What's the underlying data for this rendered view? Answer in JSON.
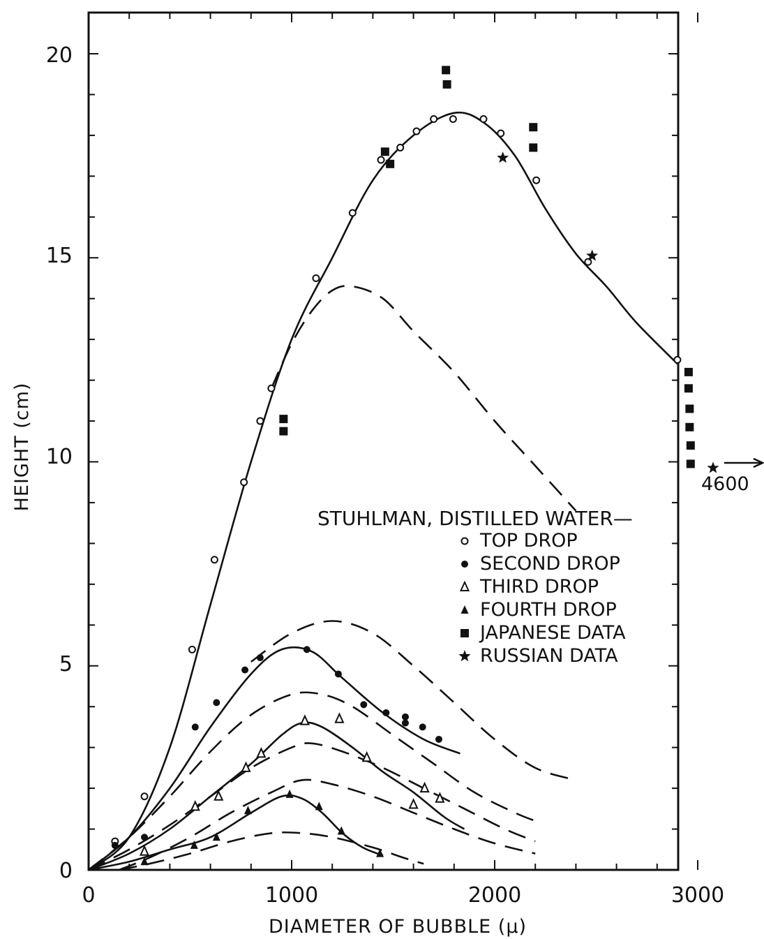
{
  "chart_data": {
    "type": "line",
    "title": "",
    "xlabel": "DIAMETER OF BUBBLE (μ)",
    "ylabel": "HEIGHT (cm)",
    "xlim": [
      0,
      3000
    ],
    "ylim": [
      0,
      20
    ],
    "xticks": [
      "0",
      "1000",
      "2000",
      "3000"
    ],
    "yticks": [
      "0",
      "5",
      "10",
      "15",
      "20"
    ],
    "legend": {
      "title": "STUHLMAN, DISTILLED WATER—",
      "placement": "right-center",
      "entries": [
        {
          "label": "TOP DROP",
          "marker": "open-circle"
        },
        {
          "label": "SECOND DROP",
          "marker": "filled-circle"
        },
        {
          "label": "THIRD DROP",
          "marker": "open-triangle"
        },
        {
          "label": "FOURTH DROP",
          "marker": "filled-triangle"
        },
        {
          "label": "JAPANESE DATA",
          "marker": "filled-square"
        },
        {
          "label": "RUSSIAN DATA",
          "marker": "star"
        }
      ]
    },
    "series": [
      {
        "name": "TOP DROP",
        "marker": "open-circle",
        "points": [
          [
            130,
            0.7
          ],
          [
            275,
            1.8
          ],
          [
            510,
            5.4
          ],
          [
            620,
            7.6
          ],
          [
            765,
            9.5
          ],
          [
            845,
            11
          ],
          [
            900,
            11.8
          ],
          [
            1120,
            14.5
          ],
          [
            1300,
            16.1
          ],
          [
            1440,
            17.4
          ],
          [
            1535,
            17.7
          ],
          [
            1615,
            18.1
          ],
          [
            1700,
            18.4
          ],
          [
            1795,
            18.4
          ],
          [
            1945,
            18.4
          ],
          [
            2030,
            18.05
          ],
          [
            2205,
            16.9
          ],
          [
            2460,
            14.9
          ],
          [
            2900,
            12.5
          ]
        ]
      },
      {
        "name": "SECOND DROP",
        "marker": "filled-circle",
        "points": [
          [
            130,
            0.6
          ],
          [
            275,
            0.8
          ],
          [
            525,
            3.5
          ],
          [
            630,
            4.1
          ],
          [
            770,
            4.9
          ],
          [
            845,
            5.2
          ],
          [
            1075,
            5.4
          ],
          [
            1230,
            4.8
          ],
          [
            1355,
            4.05
          ],
          [
            1465,
            3.85
          ],
          [
            1560,
            3.75
          ],
          [
            1560,
            3.6
          ],
          [
            1645,
            3.5
          ],
          [
            1725,
            3.2
          ]
        ]
      },
      {
        "name": "THIRD DROP",
        "marker": "open-triangle",
        "points": [
          [
            275,
            0.45
          ],
          [
            525,
            1.55
          ],
          [
            640,
            1.8
          ],
          [
            775,
            2.5
          ],
          [
            850,
            2.85
          ],
          [
            1065,
            3.65
          ],
          [
            1235,
            3.7
          ],
          [
            1370,
            2.75
          ],
          [
            1600,
            1.6
          ],
          [
            1655,
            2.0
          ],
          [
            1730,
            1.75
          ]
        ]
      },
      {
        "name": "FOURTH DROP",
        "marker": "filled-triangle",
        "points": [
          [
            275,
            0.2
          ],
          [
            520,
            0.6
          ],
          [
            630,
            0.8
          ],
          [
            785,
            1.45
          ],
          [
            990,
            1.85
          ],
          [
            1135,
            1.55
          ],
          [
            1245,
            0.95
          ],
          [
            1435,
            0.4
          ]
        ]
      },
      {
        "name": "JAPANESE DATA",
        "marker": "filled-square",
        "points": [
          [
            960,
            11.05
          ],
          [
            960,
            10.75
          ],
          [
            1460,
            17.6
          ],
          [
            1485,
            17.3
          ],
          [
            1760,
            19.6
          ],
          [
            1765,
            19.25
          ],
          [
            2190,
            18.2
          ],
          [
            2190,
            17.7
          ],
          [
            2955,
            12.2
          ],
          [
            2955,
            11.8
          ],
          [
            2960,
            11.3
          ],
          [
            2960,
            10.85
          ],
          [
            2965,
            10.4
          ],
          [
            2965,
            9.95
          ]
        ]
      },
      {
        "name": "RUSSIAN DATA",
        "marker": "star",
        "points": [
          [
            2040,
            17.45
          ],
          [
            2480,
            15.05
          ]
        ]
      }
    ],
    "curves": [
      {
        "style": "solid",
        "points": [
          [
            0,
            0
          ],
          [
            200,
            0.8
          ],
          [
            400,
            3.0
          ],
          [
            600,
            6.5
          ],
          [
            800,
            10.0
          ],
          [
            1000,
            13.0
          ],
          [
            1200,
            15.0
          ],
          [
            1400,
            16.9
          ],
          [
            1600,
            18.0
          ],
          [
            1800,
            18.55
          ],
          [
            1950,
            18.3
          ],
          [
            2100,
            17.5
          ],
          [
            2250,
            16.2
          ],
          [
            2400,
            15.1
          ],
          [
            2550,
            14.3
          ],
          [
            2700,
            13.4
          ],
          [
            2900,
            12.4
          ]
        ]
      },
      {
        "style": "dashed",
        "points": [
          [
            900,
            11.8
          ],
          [
            1000,
            12.9
          ],
          [
            1100,
            13.7
          ],
          [
            1200,
            14.2
          ],
          [
            1300,
            14.3
          ],
          [
            1450,
            14.0
          ],
          [
            1600,
            13.2
          ],
          [
            1800,
            12.2
          ],
          [
            2000,
            11.0
          ],
          [
            2200,
            9.9
          ],
          [
            2400,
            8.8
          ]
        ]
      },
      {
        "style": "solid",
        "points": [
          [
            0,
            0
          ],
          [
            200,
            0.8
          ],
          [
            400,
            2.0
          ],
          [
            600,
            3.5
          ],
          [
            800,
            4.8
          ],
          [
            950,
            5.4
          ],
          [
            1100,
            5.35
          ],
          [
            1250,
            4.7
          ],
          [
            1450,
            3.85
          ],
          [
            1650,
            3.2
          ],
          [
            1830,
            2.85
          ]
        ]
      },
      {
        "style": "dashed",
        "points": [
          [
            800,
            5.1
          ],
          [
            1000,
            5.8
          ],
          [
            1200,
            6.1
          ],
          [
            1400,
            5.8
          ],
          [
            1600,
            5.0
          ],
          [
            1800,
            4.1
          ],
          [
            2000,
            3.2
          ],
          [
            2200,
            2.5
          ],
          [
            2400,
            2.2
          ]
        ]
      },
      {
        "style": "dashed",
        "points": [
          [
            0,
            0
          ],
          [
            200,
            0.8
          ],
          [
            400,
            1.8
          ],
          [
            600,
            2.9
          ],
          [
            800,
            3.8
          ],
          [
            1000,
            4.3
          ],
          [
            1150,
            4.3
          ],
          [
            1300,
            4.0
          ],
          [
            1500,
            3.3
          ],
          [
            1700,
            2.6
          ],
          [
            1900,
            1.9
          ],
          [
            2100,
            1.4
          ],
          [
            2200,
            1.2
          ]
        ]
      },
      {
        "style": "solid",
        "points": [
          [
            0,
            0
          ],
          [
            200,
            0.4
          ],
          [
            400,
            1.0
          ],
          [
            600,
            1.8
          ],
          [
            800,
            2.6
          ],
          [
            950,
            3.3
          ],
          [
            1050,
            3.6
          ],
          [
            1150,
            3.5
          ],
          [
            1300,
            3.0
          ],
          [
            1450,
            2.4
          ],
          [
            1600,
            1.9
          ],
          [
            1750,
            1.3
          ],
          [
            1850,
            1.0
          ]
        ]
      },
      {
        "style": "dashed",
        "points": [
          [
            0,
            0
          ],
          [
            200,
            0.5
          ],
          [
            400,
            1.1
          ],
          [
            600,
            1.8
          ],
          [
            800,
            2.5
          ],
          [
            1000,
            3.0
          ],
          [
            1100,
            3.1
          ],
          [
            1250,
            2.9
          ],
          [
            1450,
            2.5
          ],
          [
            1650,
            2.0
          ],
          [
            1850,
            1.5
          ],
          [
            2050,
            1.0
          ],
          [
            2200,
            0.7
          ]
        ]
      },
      {
        "style": "solid",
        "points": [
          [
            0,
            0
          ],
          [
            200,
            0.2
          ],
          [
            400,
            0.5
          ],
          [
            600,
            0.8
          ],
          [
            800,
            1.4
          ],
          [
            950,
            1.8
          ],
          [
            1050,
            1.75
          ],
          [
            1150,
            1.4
          ],
          [
            1250,
            0.9
          ],
          [
            1350,
            0.55
          ],
          [
            1450,
            0.35
          ]
        ]
      },
      {
        "style": "dashed",
        "points": [
          [
            150,
            0
          ],
          [
            300,
            0.3
          ],
          [
            500,
            0.8
          ],
          [
            700,
            1.4
          ],
          [
            900,
            1.9
          ],
          [
            1050,
            2.2
          ],
          [
            1200,
            2.1
          ],
          [
            1400,
            1.8
          ],
          [
            1600,
            1.4
          ],
          [
            1800,
            1.0
          ],
          [
            2000,
            0.65
          ],
          [
            2200,
            0.4
          ]
        ]
      },
      {
        "style": "dashed",
        "points": [
          [
            150,
            0
          ],
          [
            300,
            0.15
          ],
          [
            500,
            0.4
          ],
          [
            700,
            0.7
          ],
          [
            900,
            0.9
          ],
          [
            1050,
            0.9
          ],
          [
            1200,
            0.8
          ],
          [
            1400,
            0.55
          ],
          [
            1550,
            0.3
          ],
          [
            1650,
            0.15
          ]
        ]
      }
    ],
    "offscale_point": {
      "marker": "star",
      "label": "4600",
      "x": 4600,
      "y": 9.85
    }
  }
}
